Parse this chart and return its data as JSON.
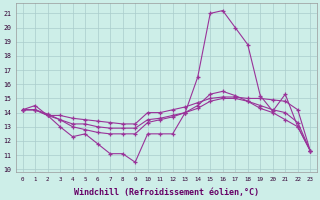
{
  "background_color": "#cdeee8",
  "grid_color": "#aacccc",
  "line_color": "#993399",
  "xlabel": "Windchill (Refroidissement éolien,°C)",
  "xlabel_fontsize": 6.0,
  "ylim": [
    9.8,
    21.7
  ],
  "xlim": [
    -0.5,
    23.5
  ],
  "series": [
    [
      14.2,
      14.5,
      13.8,
      13.0,
      12.3,
      12.5,
      11.8,
      11.1,
      11.1,
      10.5,
      12.5,
      12.5,
      12.5,
      14.0,
      16.5,
      21.0,
      21.2,
      20.0,
      18.8,
      15.2,
      14.1,
      15.3,
      13.0,
      11.3
    ],
    [
      14.2,
      14.2,
      13.8,
      13.8,
      13.6,
      13.5,
      13.4,
      13.3,
      13.2,
      13.2,
      14.0,
      14.0,
      14.2,
      14.4,
      14.7,
      15.0,
      15.1,
      15.1,
      15.0,
      15.0,
      14.9,
      14.8,
      14.2,
      11.3
    ],
    [
      14.2,
      14.2,
      13.8,
      13.5,
      13.2,
      13.2,
      13.0,
      12.9,
      12.9,
      12.9,
      13.5,
      13.6,
      13.8,
      14.0,
      14.3,
      14.8,
      15.0,
      15.0,
      14.8,
      14.5,
      14.2,
      14.0,
      13.3,
      11.3
    ],
    [
      14.2,
      14.2,
      13.9,
      13.5,
      13.0,
      12.8,
      12.6,
      12.5,
      12.5,
      12.5,
      13.3,
      13.5,
      13.7,
      14.0,
      14.5,
      15.3,
      15.5,
      15.2,
      14.8,
      14.3,
      14.0,
      13.5,
      13.0,
      11.3
    ]
  ]
}
